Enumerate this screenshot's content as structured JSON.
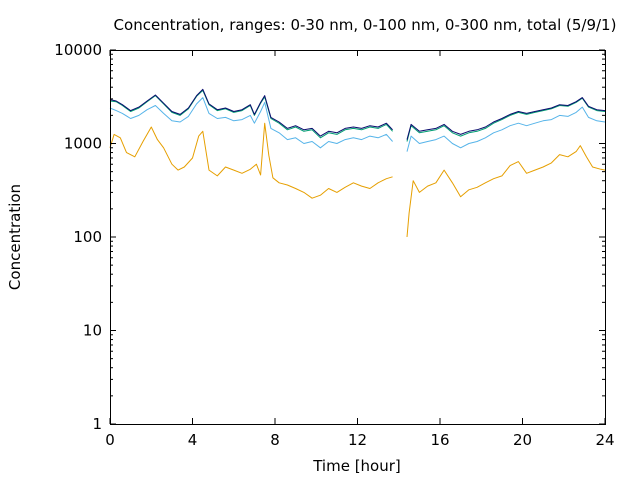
{
  "chart_data": {
    "type": "line",
    "title": "Concentration, ranges: 0-30 nm, 0-100 nm, 0-300 nm, total (5/9/1)",
    "xlabel": "Time [hour]",
    "ylabel": "Concentration",
    "xlim": [
      0,
      24
    ],
    "ylim": [
      1,
      10000
    ],
    "y_scale": "log",
    "x_ticks": [
      0,
      4,
      8,
      12,
      16,
      20,
      24
    ],
    "x_tick_labels": [
      "0",
      "4",
      "8",
      "12",
      "16",
      "20",
      "24"
    ],
    "y_ticks": [
      1,
      10,
      100,
      1000,
      10000
    ],
    "y_tick_labels": [
      "1",
      "10",
      "100",
      "1000",
      "10000"
    ],
    "grid": false,
    "legend": "none",
    "series": [
      {
        "color": "#e69f00",
        "points": [
          [
            0,
            900
          ],
          [
            0.2,
            1250
          ],
          [
            0.5,
            1150
          ],
          [
            0.8,
            800
          ],
          [
            1.2,
            720
          ],
          [
            1.6,
            1050
          ],
          [
            2.0,
            1500
          ],
          [
            2.3,
            1100
          ],
          [
            2.6,
            900
          ],
          [
            3.0,
            600
          ],
          [
            3.3,
            520
          ],
          [
            3.6,
            560
          ],
          [
            4.0,
            700
          ],
          [
            4.3,
            1200
          ],
          [
            4.5,
            1350
          ],
          [
            4.8,
            520
          ],
          [
            5.2,
            450
          ],
          [
            5.6,
            560
          ],
          [
            6.0,
            520
          ],
          [
            6.4,
            480
          ],
          [
            6.8,
            530
          ],
          [
            7.1,
            600
          ],
          [
            7.3,
            460
          ],
          [
            7.5,
            1650
          ],
          [
            7.7,
            750
          ],
          [
            7.9,
            430
          ],
          [
            8.2,
            380
          ],
          [
            8.6,
            360
          ],
          [
            9.0,
            330
          ],
          [
            9.4,
            300
          ],
          [
            9.8,
            260
          ],
          [
            10.2,
            280
          ],
          [
            10.6,
            330
          ],
          [
            11.0,
            300
          ],
          [
            11.4,
            340
          ],
          [
            11.8,
            380
          ],
          [
            12.2,
            350
          ],
          [
            12.6,
            330
          ],
          [
            13.0,
            380
          ],
          [
            13.4,
            420
          ],
          [
            13.7,
            440
          ],
          [
            null,
            null
          ],
          [
            14.4,
            100
          ],
          [
            14.5,
            180
          ],
          [
            14.7,
            400
          ],
          [
            15.0,
            300
          ],
          [
            15.4,
            350
          ],
          [
            15.8,
            380
          ],
          [
            16.2,
            520
          ],
          [
            16.6,
            380
          ],
          [
            17.0,
            270
          ],
          [
            17.4,
            320
          ],
          [
            17.8,
            340
          ],
          [
            18.2,
            380
          ],
          [
            18.6,
            420
          ],
          [
            19.0,
            450
          ],
          [
            19.4,
            580
          ],
          [
            19.8,
            640
          ],
          [
            20.2,
            480
          ],
          [
            20.6,
            520
          ],
          [
            21.0,
            560
          ],
          [
            21.4,
            620
          ],
          [
            21.8,
            760
          ],
          [
            22.2,
            720
          ],
          [
            22.6,
            820
          ],
          [
            22.8,
            950
          ],
          [
            23.1,
            720
          ],
          [
            23.4,
            560
          ],
          [
            23.8,
            530
          ],
          [
            24,
            520
          ]
        ]
      },
      {
        "color": "#56b4e9",
        "points": [
          [
            0,
            2400
          ],
          [
            0.3,
            2250
          ],
          [
            0.6,
            2100
          ],
          [
            1.0,
            1850
          ],
          [
            1.4,
            2000
          ],
          [
            1.8,
            2300
          ],
          [
            2.2,
            2550
          ],
          [
            2.6,
            2100
          ],
          [
            3.0,
            1750
          ],
          [
            3.4,
            1700
          ],
          [
            3.8,
            1950
          ],
          [
            4.2,
            2650
          ],
          [
            4.5,
            3100
          ],
          [
            4.8,
            2100
          ],
          [
            5.2,
            1850
          ],
          [
            5.6,
            1900
          ],
          [
            6.0,
            1750
          ],
          [
            6.4,
            1800
          ],
          [
            6.8,
            2000
          ],
          [
            7.0,
            1650
          ],
          [
            7.3,
            2200
          ],
          [
            7.5,
            2750
          ],
          [
            7.8,
            1450
          ],
          [
            8.2,
            1300
          ],
          [
            8.6,
            1100
          ],
          [
            9.0,
            1150
          ],
          [
            9.4,
            1000
          ],
          [
            9.8,
            1050
          ],
          [
            10.2,
            900
          ],
          [
            10.6,
            1050
          ],
          [
            11.0,
            1000
          ],
          [
            11.4,
            1100
          ],
          [
            11.8,
            1150
          ],
          [
            12.2,
            1100
          ],
          [
            12.6,
            1200
          ],
          [
            13.0,
            1150
          ],
          [
            13.4,
            1250
          ],
          [
            13.7,
            1050
          ],
          [
            null,
            null
          ],
          [
            14.4,
            820
          ],
          [
            14.6,
            1200
          ],
          [
            15.0,
            1000
          ],
          [
            15.4,
            1050
          ],
          [
            15.8,
            1100
          ],
          [
            16.2,
            1200
          ],
          [
            16.6,
            1000
          ],
          [
            17.0,
            900
          ],
          [
            17.4,
            1000
          ],
          [
            17.8,
            1050
          ],
          [
            18.2,
            1150
          ],
          [
            18.6,
            1300
          ],
          [
            19.0,
            1400
          ],
          [
            19.4,
            1550
          ],
          [
            19.8,
            1650
          ],
          [
            20.2,
            1550
          ],
          [
            20.6,
            1650
          ],
          [
            21.0,
            1750
          ],
          [
            21.4,
            1800
          ],
          [
            21.8,
            2000
          ],
          [
            22.2,
            1950
          ],
          [
            22.6,
            2150
          ],
          [
            22.9,
            2450
          ],
          [
            23.2,
            1900
          ],
          [
            23.6,
            1750
          ],
          [
            24,
            1700
          ]
        ]
      },
      {
        "color": "#009e73",
        "points": [
          [
            0,
            2850
          ],
          [
            0.3,
            2800
          ],
          [
            0.6,
            2550
          ],
          [
            1.0,
            2200
          ],
          [
            1.4,
            2400
          ],
          [
            1.8,
            2800
          ],
          [
            2.2,
            3250
          ],
          [
            2.6,
            2650
          ],
          [
            3.0,
            2150
          ],
          [
            3.4,
            2000
          ],
          [
            3.8,
            2350
          ],
          [
            4.2,
            3200
          ],
          [
            4.5,
            3700
          ],
          [
            4.8,
            2600
          ],
          [
            5.2,
            2250
          ],
          [
            5.6,
            2350
          ],
          [
            6.0,
            2150
          ],
          [
            6.4,
            2250
          ],
          [
            6.8,
            2550
          ],
          [
            7.0,
            2000
          ],
          [
            7.3,
            2700
          ],
          [
            7.5,
            3150
          ],
          [
            7.8,
            1850
          ],
          [
            8.2,
            1650
          ],
          [
            8.6,
            1400
          ],
          [
            9.0,
            1500
          ],
          [
            9.4,
            1350
          ],
          [
            9.8,
            1400
          ],
          [
            10.2,
            1150
          ],
          [
            10.6,
            1300
          ],
          [
            11.0,
            1250
          ],
          [
            11.4,
            1400
          ],
          [
            11.8,
            1450
          ],
          [
            12.2,
            1400
          ],
          [
            12.6,
            1500
          ],
          [
            13.0,
            1450
          ],
          [
            13.4,
            1600
          ],
          [
            13.7,
            1350
          ],
          [
            null,
            null
          ],
          [
            14.4,
            1050
          ],
          [
            14.6,
            1550
          ],
          [
            15.0,
            1300
          ],
          [
            15.4,
            1350
          ],
          [
            15.8,
            1400
          ],
          [
            16.2,
            1550
          ],
          [
            16.6,
            1300
          ],
          [
            17.0,
            1200
          ],
          [
            17.4,
            1300
          ],
          [
            17.8,
            1350
          ],
          [
            18.2,
            1450
          ],
          [
            18.6,
            1650
          ],
          [
            19.0,
            1800
          ],
          [
            19.4,
            2000
          ],
          [
            19.8,
            2150
          ],
          [
            20.2,
            2050
          ],
          [
            20.6,
            2150
          ],
          [
            21.0,
            2250
          ],
          [
            21.4,
            2350
          ],
          [
            21.8,
            2550
          ],
          [
            22.2,
            2500
          ],
          [
            22.6,
            2750
          ],
          [
            22.9,
            3050
          ],
          [
            23.2,
            2450
          ],
          [
            23.6,
            2250
          ],
          [
            24,
            2200
          ]
        ]
      },
      {
        "color": "#0b0b6e",
        "points": [
          [
            0,
            2950
          ],
          [
            0.3,
            2850
          ],
          [
            0.6,
            2600
          ],
          [
            1.0,
            2250
          ],
          [
            1.4,
            2450
          ],
          [
            1.8,
            2850
          ],
          [
            2.2,
            3300
          ],
          [
            2.6,
            2700
          ],
          [
            3.0,
            2200
          ],
          [
            3.4,
            2050
          ],
          [
            3.8,
            2400
          ],
          [
            4.2,
            3250
          ],
          [
            4.5,
            3800
          ],
          [
            4.8,
            2650
          ],
          [
            5.2,
            2300
          ],
          [
            5.6,
            2400
          ],
          [
            6.0,
            2200
          ],
          [
            6.4,
            2300
          ],
          [
            6.8,
            2600
          ],
          [
            7.0,
            2050
          ],
          [
            7.3,
            2750
          ],
          [
            7.5,
            3250
          ],
          [
            7.8,
            1900
          ],
          [
            8.2,
            1700
          ],
          [
            8.6,
            1450
          ],
          [
            9.0,
            1550
          ],
          [
            9.4,
            1400
          ],
          [
            9.8,
            1450
          ],
          [
            10.2,
            1200
          ],
          [
            10.6,
            1350
          ],
          [
            11.0,
            1300
          ],
          [
            11.4,
            1450
          ],
          [
            11.8,
            1500
          ],
          [
            12.2,
            1450
          ],
          [
            12.6,
            1550
          ],
          [
            13.0,
            1500
          ],
          [
            13.4,
            1650
          ],
          [
            13.7,
            1400
          ],
          [
            null,
            null
          ],
          [
            14.4,
            1100
          ],
          [
            14.6,
            1600
          ],
          [
            15.0,
            1350
          ],
          [
            15.4,
            1400
          ],
          [
            15.8,
            1450
          ],
          [
            16.2,
            1600
          ],
          [
            16.6,
            1350
          ],
          [
            17.0,
            1250
          ],
          [
            17.4,
            1350
          ],
          [
            17.8,
            1400
          ],
          [
            18.2,
            1500
          ],
          [
            18.6,
            1700
          ],
          [
            19.0,
            1850
          ],
          [
            19.4,
            2050
          ],
          [
            19.8,
            2200
          ],
          [
            20.2,
            2100
          ],
          [
            20.6,
            2200
          ],
          [
            21.0,
            2300
          ],
          [
            21.4,
            2400
          ],
          [
            21.8,
            2600
          ],
          [
            22.2,
            2550
          ],
          [
            22.6,
            2800
          ],
          [
            22.9,
            3100
          ],
          [
            23.2,
            2500
          ],
          [
            23.6,
            2300
          ],
          [
            24,
            2250
          ]
        ]
      }
    ]
  }
}
